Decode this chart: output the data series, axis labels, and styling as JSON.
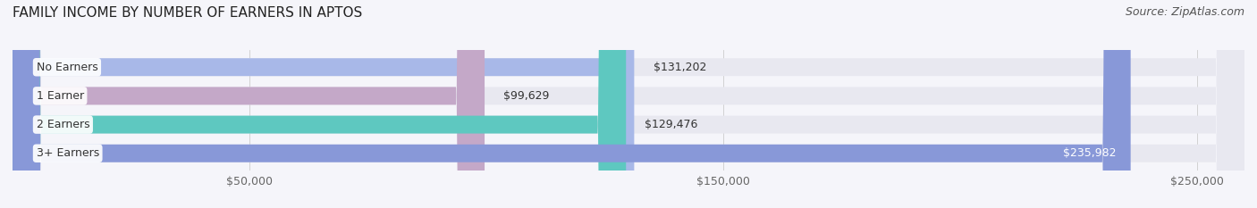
{
  "title": "FAMILY INCOME BY NUMBER OF EARNERS IN APTOS",
  "source": "Source: ZipAtlas.com",
  "categories": [
    "No Earners",
    "1 Earner",
    "2 Earners",
    "3+ Earners"
  ],
  "values": [
    131202,
    99629,
    129476,
    235982
  ],
  "labels": [
    "$131,202",
    "$99,629",
    "$129,476",
    "$235,982"
  ],
  "bar_colors": [
    "#a8b8e8",
    "#c4a8c8",
    "#5ec8c0",
    "#8898d8"
  ],
  "bar_bg_color": "#e8e8f0",
  "xlim": [
    0,
    260000
  ],
  "xticks": [
    50000,
    150000,
    250000
  ],
  "xticklabels": [
    "$50,000",
    "$150,000",
    "$250,000"
  ],
  "figsize": [
    14.06,
    2.33
  ],
  "dpi": 100,
  "background_color": "#f5f5fa",
  "title_fontsize": 11,
  "source_fontsize": 9,
  "bar_label_fontsize": 9,
  "category_label_fontsize": 9,
  "tick_fontsize": 9
}
